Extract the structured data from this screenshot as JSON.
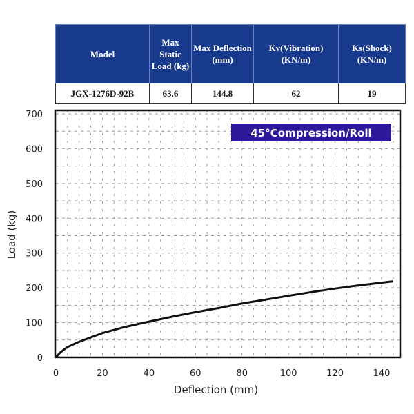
{
  "table": {
    "headers": [
      "Model",
      "Max Static Load (kg)",
      "Max Deflection (mm)",
      "Kv(Vibration) (KN/m)",
      "Ks(Shock) (KN/m)"
    ],
    "row": [
      "JGX-1276D-92B",
      "63.6",
      "144.8",
      "62",
      "19"
    ],
    "header_color": "#173a8c"
  },
  "chart_data": {
    "type": "line",
    "title": "45°Compression/Roll",
    "title_box_color": "#2e1a99",
    "xlabel": "Deflection (mm)",
    "ylabel": "Load (kg)",
    "xlim": [
      0,
      148
    ],
    "ylim": [
      0,
      710
    ],
    "xticks": [
      0,
      20,
      40,
      60,
      80,
      100,
      120,
      140
    ],
    "yticks": [
      0,
      100,
      200,
      300,
      400,
      500,
      600,
      700
    ],
    "grid": true,
    "series": [
      {
        "x": [
          0,
          2,
          5,
          10,
          20,
          30,
          40,
          50,
          60,
          70,
          80,
          90,
          100,
          110,
          120,
          130,
          140,
          145
        ],
        "y": [
          0,
          15,
          30,
          45,
          70,
          88,
          103,
          117,
          130,
          142,
          155,
          166,
          177,
          188,
          198,
          207,
          215,
          219
        ]
      }
    ]
  }
}
